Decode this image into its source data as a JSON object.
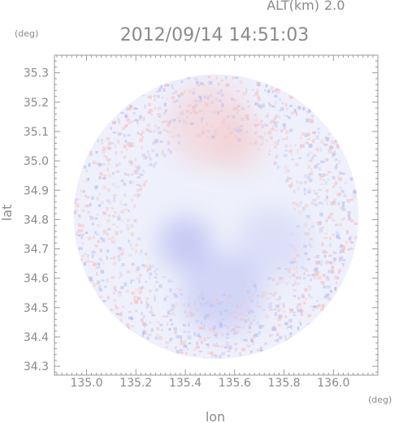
{
  "chart_data": {
    "type": "heatmap",
    "altitude_label": "ALT(km)",
    "altitude_value": "2.0",
    "timestamp": "2012/09/14 14:51:03",
    "y_unit": "(deg)",
    "x_unit": "(deg)",
    "xlabel": "lon",
    "ylabel": "lat",
    "xlim": [
      134.87,
      136.18
    ],
    "ylim": [
      34.27,
      35.36
    ],
    "x_ticks": [
      "135.0",
      "135.2",
      "135.4",
      "135.6",
      "135.8",
      "136.0"
    ],
    "y_ticks": [
      "34.3",
      "34.4",
      "34.5",
      "34.6",
      "34.7",
      "34.8",
      "34.9",
      "35.0",
      "35.1",
      "35.2",
      "35.3"
    ],
    "radar_center": [
      135.525,
      34.81
    ],
    "radar_radius_deg_lat": 0.485,
    "colors": {
      "axis": "#9a9a9a",
      "positive": "#f6c3c3",
      "negative": "#b9bff2",
      "neutral": "#eef0fb"
    },
    "regions": [
      {
        "name": "positive",
        "lon": 135.5,
        "lat": 35.12,
        "r": 0.14,
        "intensity": 0.45
      },
      {
        "name": "positive",
        "lon": 135.62,
        "lat": 35.05,
        "r": 0.09,
        "intensity": 0.35
      },
      {
        "name": "negative",
        "lon": 135.4,
        "lat": 34.72,
        "r": 0.09,
        "intensity": 0.75
      },
      {
        "name": "negative",
        "lon": 135.55,
        "lat": 34.55,
        "r": 0.14,
        "intensity": 0.55
      },
      {
        "name": "negative",
        "lon": 135.75,
        "lat": 34.72,
        "r": 0.12,
        "intensity": 0.35
      }
    ]
  }
}
